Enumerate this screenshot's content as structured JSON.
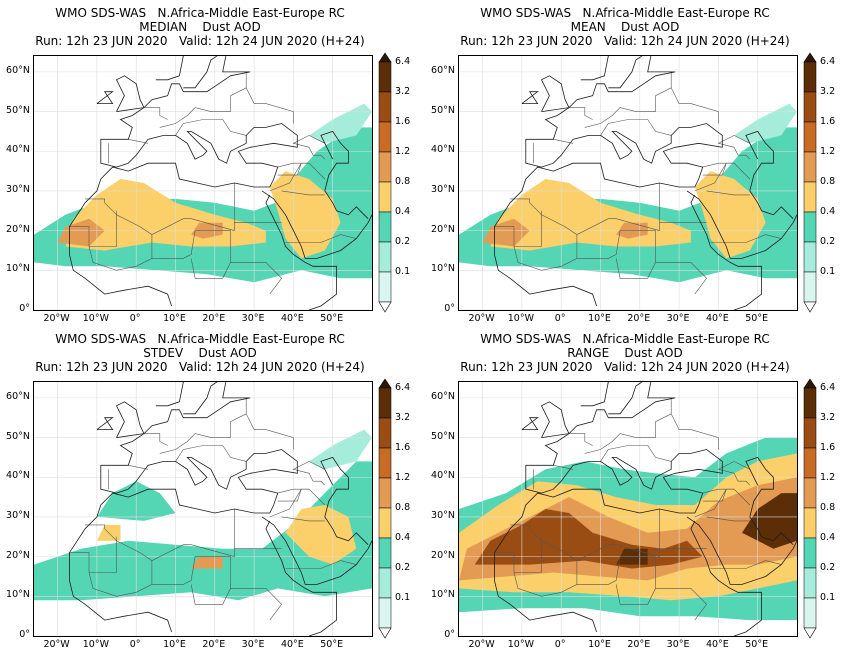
{
  "colors": {
    "c01": "#d8f6ee",
    "c02": "#a6ecdb",
    "c04": "#54d6b4",
    "c08": "#fbcf69",
    "c12": "#e39a53",
    "c16": "#c76b25",
    "c32": "#9a4d12",
    "c64": "#5c2e07",
    "cmax": "#2e1804",
    "coast": "#1c1c1c",
    "border": "#555555",
    "grid": "#dddddd"
  },
  "colorbar": {
    "levels": [
      "6.4",
      "3.2",
      "1.6",
      "1.2",
      "0.8",
      "0.4",
      "0.2",
      "0.1"
    ]
  },
  "axes": {
    "lat_labels": [
      "60°N",
      "50°N",
      "40°N",
      "30°N",
      "20°N",
      "10°N",
      "0°"
    ],
    "lon_labels": [
      "20°W",
      "10°W",
      "0°",
      "10°E",
      "20°E",
      "30°E",
      "40°E",
      "50°E"
    ]
  },
  "panels": [
    {
      "id": "median",
      "title1": "WMO SDS-WAS   N.Africa-Middle East-Europe RC",
      "title2": "MEDIAN    Dust AOD",
      "title3": "Run: 12h 23 JUN 2020   Valid: 12h 24 JUN 2020 (H+24)"
    },
    {
      "id": "mean",
      "title1": "WMO SDS-WAS   N.Africa-Middle East-Europe RC",
      "title2": "MEAN    Dust AOD",
      "title3": "Run: 12h 23 JUN 2020   Valid: 12h 24 JUN 2020 (H+24)"
    },
    {
      "id": "stdev",
      "title1": "WMO SDS-WAS   N.Africa-Middle East-Europe RC",
      "title2": "STDEV    Dust AOD",
      "title3": "Run: 12h 23 JUN 2020   Valid: 12h 24 JUN 2020 (H+24)"
    },
    {
      "id": "range",
      "title1": "WMO SDS-WAS   N.Africa-Middle East-Europe RC",
      "title2": "RANGE    Dust AOD",
      "title3": "Run: 12h 23 JUN 2020   Valid: 12h 24 JUN 2020 (H+24)"
    }
  ]
}
